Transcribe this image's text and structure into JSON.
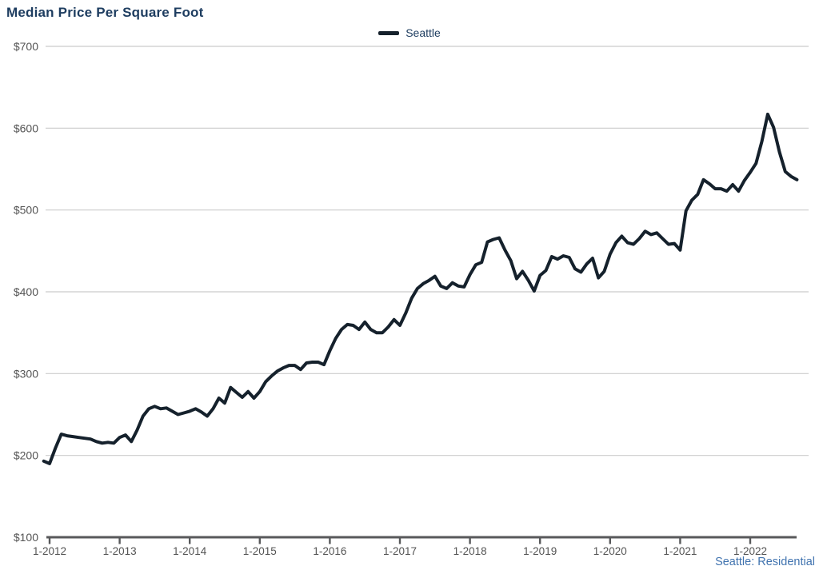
{
  "title": "Median Price Per Square Foot",
  "legend": {
    "items": [
      {
        "label": "Seattle",
        "color": "#15212c"
      }
    ]
  },
  "source_note": "Seattle: Residential",
  "colors": {
    "background": "#ffffff",
    "title": "#1e3d60",
    "legend_label": "#1e3d60",
    "series_line": "#15212c",
    "grid_line": "#cccccc",
    "axis_line": "#58595b",
    "tick_label": "#545454",
    "source_note": "#4073af"
  },
  "chart_data": {
    "type": "line",
    "title": "Median Price Per Square Foot",
    "grid": "horizontal-only",
    "legend_position": "top-center",
    "ylim": [
      100,
      700
    ],
    "y_ticks": [
      {
        "value": 100,
        "label": "$100"
      },
      {
        "value": 200,
        "label": "$200"
      },
      {
        "value": 300,
        "label": "$300"
      },
      {
        "value": 400,
        "label": "$400"
      },
      {
        "value": 500,
        "label": "$500"
      },
      {
        "value": 600,
        "label": "$600"
      },
      {
        "value": 700,
        "label": "$700"
      }
    ],
    "x_unit": "month",
    "x_start": "2011-12",
    "x_end": "2022-09",
    "x_ticks": [
      {
        "month_index": 1,
        "label": "1-2012"
      },
      {
        "month_index": 13,
        "label": "1-2013"
      },
      {
        "month_index": 25,
        "label": "1-2014"
      },
      {
        "month_index": 37,
        "label": "1-2015"
      },
      {
        "month_index": 49,
        "label": "1-2016"
      },
      {
        "month_index": 61,
        "label": "1-2017"
      },
      {
        "month_index": 73,
        "label": "1-2018"
      },
      {
        "month_index": 85,
        "label": "1-2019"
      },
      {
        "month_index": 97,
        "label": "1-2020"
      },
      {
        "month_index": 109,
        "label": "1-2021"
      },
      {
        "month_index": 121,
        "label": "1-2022"
      }
    ],
    "series": [
      {
        "name": "Seattle",
        "color": "#15212c",
        "interval": "monthly",
        "start": "2011-12",
        "values": [
          193,
          190,
          209,
          226,
          224,
          223,
          222,
          221,
          220,
          217,
          215,
          216,
          215,
          222,
          225,
          217,
          231,
          248,
          257,
          260,
          257,
          258,
          254,
          250,
          252,
          254,
          257,
          253,
          248,
          257,
          270,
          264,
          283,
          277,
          271,
          278,
          270,
          278,
          290,
          297,
          303,
          307,
          310,
          310,
          305,
          313,
          314,
          314,
          311,
          328,
          343,
          354,
          360,
          359,
          354,
          363,
          354,
          350,
          350,
          357,
          366,
          359,
          374,
          392,
          404,
          410,
          414,
          419,
          407,
          404,
          411,
          407,
          406,
          421,
          433,
          436,
          461,
          464,
          466,
          451,
          438,
          416,
          425,
          414,
          401,
          420,
          426,
          443,
          440,
          444,
          442,
          428,
          424,
          434,
          441,
          417,
          425,
          446,
          460,
          468,
          460,
          458,
          465,
          474,
          470,
          472,
          465,
          458,
          459,
          451,
          499,
          512,
          519,
          537,
          532,
          526,
          526,
          523,
          531,
          523,
          536,
          546,
          557,
          584,
          617,
          601,
          571,
          547,
          541,
          537
        ]
      }
    ]
  }
}
